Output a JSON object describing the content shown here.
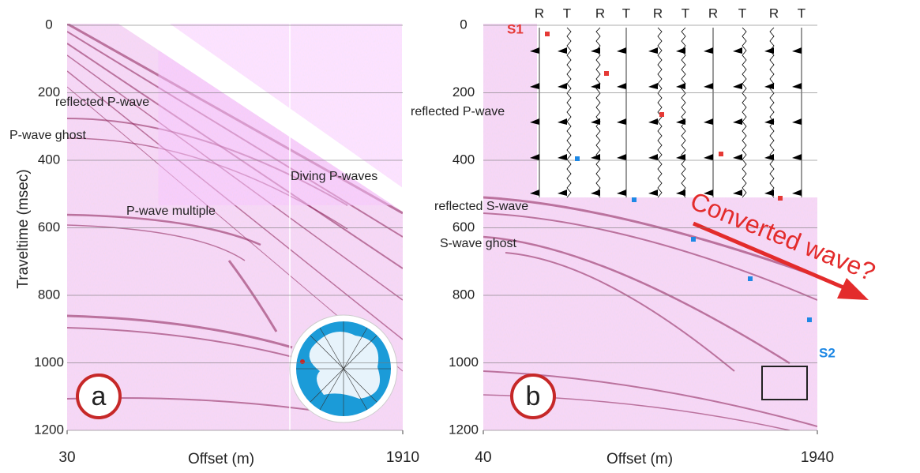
{
  "panels": [
    {
      "label": "a",
      "ylabel": "Traveltime (msec)",
      "ylim": [
        0,
        1200
      ],
      "yticks": [
        0,
        200,
        400,
        600,
        800,
        1000,
        1200
      ],
      "xlabel": "Offset (m)",
      "xlim": [
        30,
        1910
      ],
      "xticks": [
        30,
        1910
      ],
      "annotations": [
        "reflected P-wave",
        "P-wave ghost",
        "P-wave multiple",
        "Diving P-waves"
      ]
    },
    {
      "label": "b",
      "ylim": [
        0,
        1200
      ],
      "yticks": [
        0,
        200,
        400,
        600,
        800,
        1000,
        1200
      ],
      "xlabel": "Offset (m)",
      "xlim": [
        40,
        1940
      ],
      "xticks": [
        40,
        1940
      ],
      "annotations": [
        "reflected P-wave",
        "reflected S-wave",
        "S-wave ghost",
        "Converted wave?"
      ],
      "trace_headers": [
        "R",
        "T",
        "R",
        "T",
        "R",
        "T",
        "R",
        "T",
        "R",
        "T"
      ],
      "sources": [
        "S1",
        "S2"
      ]
    }
  ]
}
